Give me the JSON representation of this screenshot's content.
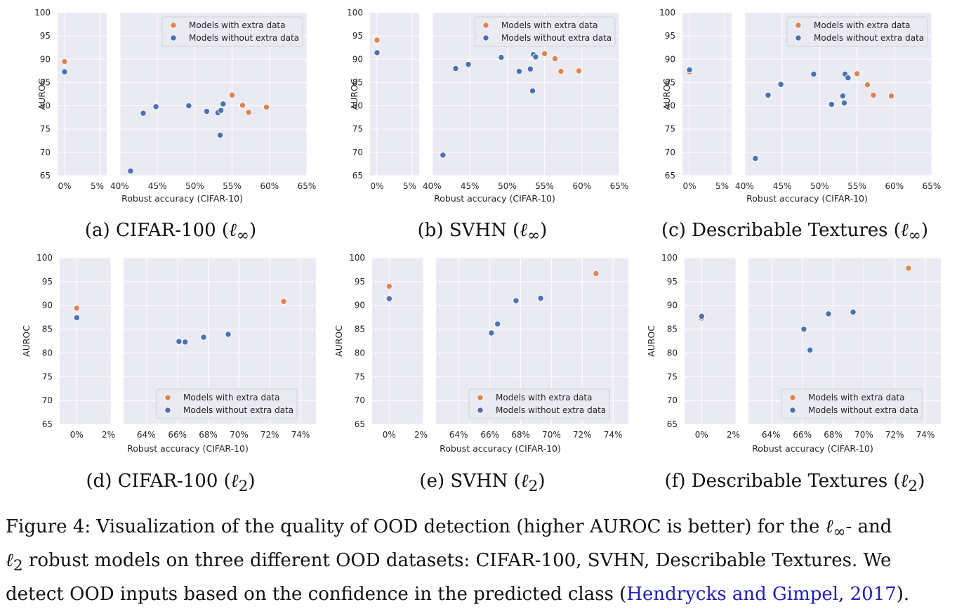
{
  "colors": {
    "with_extra": "#dd8452",
    "without_extra": "#4c72b0",
    "panel_bg": "#eaeaf2",
    "grid": "#ffffff",
    "citation": "#1f1fb8"
  },
  "chart_data": [
    {
      "type": "scatter",
      "id": "a",
      "subcaption": {
        "prefix": "(a) CIFAR-100 (",
        "symbol": "ℓ",
        "sub": "∞",
        "suffix": ")"
      },
      "ylabel": "AUROC",
      "xlabel": "Robust accuracy (CIFAR-10)",
      "ylim": [
        65,
        100
      ],
      "yticks": [
        "100",
        "95",
        "90",
        "85",
        "80",
        "75",
        "70",
        "65"
      ],
      "left_xlim": [
        -1,
        6
      ],
      "left_xticks": [
        "0%",
        "5%"
      ],
      "right_xlim": [
        40,
        65
      ],
      "right_xticks": [
        "40%",
        "45%",
        "50%",
        "55%",
        "60%",
        "65%"
      ],
      "legend_position": "top-right",
      "series": [
        {
          "name": "Models with extra data",
          "points": [
            [
              0,
              89.5
            ],
            [
              55.0,
              82.3
            ],
            [
              56.4,
              80.1
            ],
            [
              57.2,
              78.6
            ],
            [
              59.6,
              79.7
            ]
          ]
        },
        {
          "name": "Models without extra data",
          "points": [
            [
              0,
              87.3
            ],
            [
              41.4,
              66.0
            ],
            [
              43.1,
              78.4
            ],
            [
              44.8,
              79.8
            ],
            [
              49.2,
              80.0
            ],
            [
              51.6,
              78.8
            ],
            [
              53.1,
              78.5
            ],
            [
              53.4,
              73.7
            ],
            [
              53.5,
              79.0
            ],
            [
              53.8,
              80.4
            ]
          ]
        }
      ]
    },
    {
      "type": "scatter",
      "id": "b",
      "subcaption": {
        "prefix": "(b) SVHN (",
        "symbol": "ℓ",
        "sub": "∞",
        "suffix": ")"
      },
      "ylabel": "AUROC",
      "xlabel": "Robust accuracy (CIFAR-10)",
      "ylim": [
        65,
        100
      ],
      "yticks": [
        "100",
        "95",
        "90",
        "85",
        "80",
        "75",
        "70",
        "65"
      ],
      "left_xlim": [
        -1,
        6
      ],
      "left_xticks": [
        "0%",
        "5%"
      ],
      "right_xlim": [
        40,
        65
      ],
      "right_xticks": [
        "40%",
        "45%",
        "50%",
        "55%",
        "60%",
        "65%"
      ],
      "legend_position": "top-right",
      "series": [
        {
          "name": "Models with extra data",
          "points": [
            [
              0,
              94.1
            ],
            [
              55.0,
              91.2
            ],
            [
              56.4,
              90.1
            ],
            [
              57.2,
              87.4
            ],
            [
              59.6,
              87.5
            ]
          ]
        },
        {
          "name": "Models without extra data",
          "points": [
            [
              0,
              91.4
            ],
            [
              41.4,
              69.4
            ],
            [
              43.1,
              88.0
            ],
            [
              44.8,
              88.9
            ],
            [
              49.2,
              90.4
            ],
            [
              51.6,
              87.4
            ],
            [
              53.1,
              87.9
            ],
            [
              53.4,
              83.2
            ],
            [
              53.5,
              91.0
            ],
            [
              53.8,
              90.5
            ]
          ]
        }
      ]
    },
    {
      "type": "scatter",
      "id": "c",
      "subcaption": {
        "prefix": "(c) Describable Textures (",
        "symbol": "ℓ",
        "sub": "∞",
        "suffix": ")"
      },
      "ylabel": "AUROC",
      "xlabel": "Robust accuracy (CIFAR-10)",
      "ylim": [
        65,
        100
      ],
      "yticks": [
        "100",
        "95",
        "90",
        "85",
        "80",
        "75",
        "70",
        "65"
      ],
      "left_xlim": [
        -1,
        6
      ],
      "left_xticks": [
        "0%",
        "5%"
      ],
      "right_xlim": [
        40,
        65
      ],
      "right_xticks": [
        "40%",
        "45%",
        "50%",
        "55%",
        "60%",
        "65%"
      ],
      "legend_position": "top-right",
      "series": [
        {
          "name": "Models with extra data",
          "points": [
            [
              0,
              87.3
            ],
            [
              55.0,
              86.9
            ],
            [
              56.4,
              84.5
            ],
            [
              57.2,
              82.3
            ],
            [
              59.6,
              82.1
            ]
          ]
        },
        {
          "name": "Models without extra data",
          "points": [
            [
              0,
              87.7
            ],
            [
              41.4,
              68.7
            ],
            [
              43.1,
              82.3
            ],
            [
              44.8,
              84.6
            ],
            [
              49.2,
              86.8
            ],
            [
              51.6,
              80.3
            ],
            [
              53.1,
              82.1
            ],
            [
              53.3,
              80.6
            ],
            [
              53.4,
              86.8
            ],
            [
              53.8,
              86.0
            ]
          ]
        }
      ]
    },
    {
      "type": "scatter",
      "id": "d",
      "subcaption": {
        "prefix": "(d) CIFAR-100 (",
        "symbol": "ℓ",
        "sub": "2",
        "suffix": ")"
      },
      "ylabel": "AUROC",
      "xlabel": "Robust accuracy (CIFAR-10)",
      "ylim": [
        65,
        100
      ],
      "yticks": [
        "100",
        "95",
        "90",
        "85",
        "80",
        "75",
        "70",
        "65"
      ],
      "left_xlim": [
        -1,
        2
      ],
      "left_xticks": [
        "0%",
        "2%"
      ],
      "right_xlim": [
        62.5,
        75
      ],
      "right_xticks": [
        "64%",
        "66%",
        "68%",
        "70%",
        "72%",
        "74%"
      ],
      "legend_position": "bottom-center",
      "series": [
        {
          "name": "Models with extra data",
          "points": [
            [
              0,
              89.4
            ],
            [
              72.9,
              90.8
            ]
          ]
        },
        {
          "name": "Models without extra data",
          "points": [
            [
              0,
              87.4
            ],
            [
              66.1,
              82.4
            ],
            [
              66.5,
              82.3
            ],
            [
              67.7,
              83.3
            ],
            [
              69.3,
              83.9
            ]
          ]
        }
      ]
    },
    {
      "type": "scatter",
      "id": "e",
      "subcaption": {
        "prefix": "(e) SVHN (",
        "symbol": "ℓ",
        "sub": "2",
        "suffix": ")"
      },
      "ylabel": "AUROC",
      "xlabel": "Robust accuracy (CIFAR-10)",
      "ylim": [
        65,
        100
      ],
      "yticks": [
        "100",
        "95",
        "90",
        "85",
        "80",
        "75",
        "70",
        "65"
      ],
      "left_xlim": [
        -1,
        2
      ],
      "left_xticks": [
        "0%",
        "2%"
      ],
      "right_xlim": [
        62.5,
        75
      ],
      "right_xticks": [
        "64%",
        "66%",
        "68%",
        "70%",
        "72%",
        "74%"
      ],
      "legend_position": "bottom-center",
      "series": [
        {
          "name": "Models with extra data",
          "points": [
            [
              0,
              94.0
            ],
            [
              72.9,
              96.7
            ]
          ]
        },
        {
          "name": "Models without extra data",
          "points": [
            [
              0,
              91.4
            ],
            [
              66.1,
              84.2
            ],
            [
              66.5,
              86.1
            ],
            [
              67.7,
              91.0
            ],
            [
              69.3,
              91.5
            ]
          ]
        }
      ]
    },
    {
      "type": "scatter",
      "id": "f",
      "subcaption": {
        "prefix": "(f) Describable Textures (",
        "symbol": "ℓ",
        "sub": "2",
        "suffix": ")"
      },
      "ylabel": "AUROC",
      "xlabel": "Robust accuracy (CIFAR-10)",
      "ylim": [
        65,
        100
      ],
      "yticks": [
        "100",
        "95",
        "90",
        "85",
        "80",
        "75",
        "70",
        "65"
      ],
      "left_xlim": [
        -1,
        2
      ],
      "left_xticks": [
        "0%",
        "2%"
      ],
      "right_xlim": [
        62.5,
        75
      ],
      "right_xticks": [
        "64%",
        "66%",
        "68%",
        "70%",
        "72%",
        "74%"
      ],
      "legend_position": "bottom-center",
      "series": [
        {
          "name": "Models with extra data",
          "points": [
            [
              0,
              87.3
            ],
            [
              72.9,
              97.8
            ]
          ]
        },
        {
          "name": "Models without extra data",
          "points": [
            [
              0,
              87.7
            ],
            [
              66.1,
              85.0
            ],
            [
              66.5,
              80.6
            ],
            [
              67.7,
              88.2
            ],
            [
              69.3,
              88.6
            ]
          ]
        }
      ]
    }
  ],
  "caption": {
    "line1_a": "Figure 4: Visualization of the quality of OOD detection (higher AUROC is better) for the ",
    "line1_sym": "ℓ",
    "line1_sub": "∞",
    "line1_b": "- and",
    "line2_sym": "ℓ",
    "line2_sub": "2",
    "line2_b": " robust models on three different OOD datasets: CIFAR-100, SVHN, Describable Textures. We",
    "line3_a": "detect OOD inputs based on the confidence in the predicted class (",
    "cite_authors": "Hendrycks and Gimpel",
    "cite_sep": ", ",
    "cite_year": "2017",
    "line3_b": ")."
  }
}
